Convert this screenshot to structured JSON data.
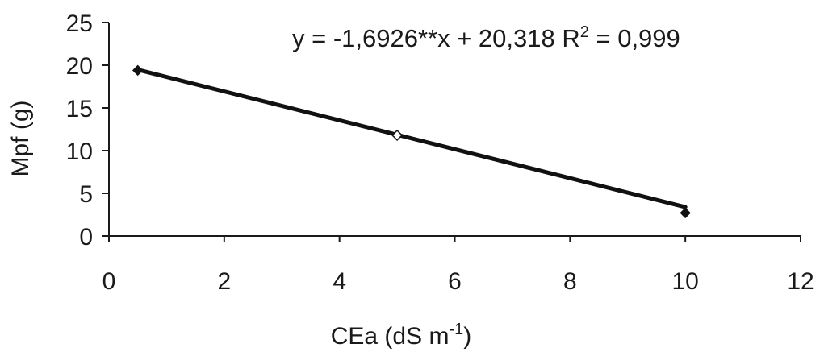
{
  "chart_data": {
    "type": "scatter",
    "x": [
      0.5,
      5,
      10
    ],
    "series": [
      {
        "values": [
          19.4,
          11.8,
          2.7
        ],
        "markers": [
          "filled-diamond",
          "open-diamond",
          "filled-diamond"
        ]
      }
    ],
    "trendline": {
      "type": "linear",
      "slope": -1.6926,
      "intercept": 20.318,
      "x_range": [
        0.5,
        10
      ]
    },
    "equation": {
      "prefix": "y = -1,6926**x + 20,318 R",
      "superscript": "2",
      "suffix": " = 0,999"
    },
    "xlabel": {
      "text": "CEa (dS m",
      "superscript": "-1",
      "close": ")"
    },
    "ylabel": "Mpf (g)",
    "xlim": [
      0,
      12
    ],
    "ylim": [
      0,
      25
    ],
    "xticks": [
      0,
      2,
      4,
      6,
      8,
      10,
      12
    ],
    "yticks": [
      0,
      5,
      10,
      15,
      20,
      25
    ],
    "grid": false,
    "legend": "none",
    "colors": {
      "axis": "#1a1a1a",
      "line": "#111111",
      "marker": "#111111",
      "background": "#ffffff"
    }
  }
}
